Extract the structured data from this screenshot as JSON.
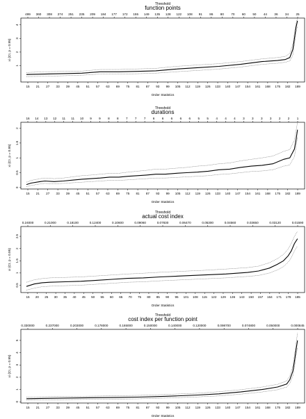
{
  "chart_data": [
    {
      "type": "line",
      "title": "function points",
      "top_axis_title": "Threshold",
      "xlabel": "Order Statistics",
      "ylabel": "xi (CI, p = 0.95)",
      "top_ticks": [
        "499",
        "360",
        "308",
        "274",
        "251",
        "235",
        "209",
        "184",
        "177",
        "172",
        "155",
        "149",
        "135",
        "128",
        "122",
        "108",
        "91",
        "86",
        "80",
        "70",
        "60",
        "50",
        "44",
        "36",
        "34",
        "25"
      ],
      "x_ticks": [
        "15",
        "21",
        "27",
        "33",
        "39",
        "45",
        "51",
        "57",
        "63",
        "69",
        "75",
        "81",
        "87",
        "93",
        "99",
        "105",
        "112",
        "119",
        "126",
        "133",
        "140",
        "147",
        "154",
        "161",
        "168",
        "175",
        "182",
        "189"
      ],
      "y_ticks": [
        1,
        2,
        3,
        4
      ],
      "ylim": [
        -0.2,
        4.5
      ],
      "xlim": [
        15,
        192
      ],
      "grid": false,
      "series": [
        {
          "role": "estimate",
          "x": [
            15,
            27,
            39,
            51,
            63,
            75,
            87,
            99,
            112,
            126,
            140,
            154,
            168,
            178,
            183,
            186,
            188,
            189,
            190,
            191
          ],
          "y": [
            0.35,
            0.38,
            0.42,
            0.45,
            0.55,
            0.55,
            0.58,
            0.62,
            0.75,
            0.85,
            0.95,
            1.1,
            1.3,
            1.38,
            1.45,
            1.6,
            2.2,
            3.0,
            3.8,
            4.3
          ]
        },
        {
          "role": "upper",
          "x": [
            15,
            27,
            39,
            51,
            63,
            75,
            87,
            99,
            112,
            126,
            140,
            154,
            168,
            178,
            183,
            186,
            188,
            189,
            190,
            191
          ],
          "y": [
            0.5,
            0.55,
            0.58,
            0.6,
            0.72,
            0.72,
            0.76,
            0.8,
            0.95,
            1.05,
            1.15,
            1.3,
            1.5,
            1.6,
            1.68,
            1.9,
            2.6,
            3.4,
            4.1,
            4.5
          ]
        },
        {
          "role": "lower",
          "x": [
            15,
            27,
            39,
            51,
            63,
            75,
            87,
            99,
            112,
            126,
            140,
            154,
            168,
            178,
            183,
            186,
            188,
            189,
            190,
            191
          ],
          "y": [
            0.2,
            0.22,
            0.26,
            0.3,
            0.38,
            0.38,
            0.41,
            0.45,
            0.55,
            0.65,
            0.75,
            0.9,
            1.1,
            1.18,
            1.25,
            1.35,
            1.8,
            2.6,
            3.4,
            3.9
          ]
        }
      ]
    },
    {
      "type": "line",
      "title": "durations",
      "top_axis_title": "Threshold",
      "xlabel": "Order Statistics",
      "ylabel": "xi (CI, p = 0.95)",
      "top_ticks": [
        "16",
        "14",
        "13",
        "12",
        "11",
        "11",
        "10",
        "9",
        "9",
        "8",
        "8",
        "7",
        "7",
        "7",
        "6",
        "6",
        "6",
        "6",
        "6",
        "5",
        "5",
        "4",
        "4",
        "4",
        "3",
        "3",
        "3",
        "3",
        "2",
        "2",
        "1"
      ],
      "x_ticks": [
        "15",
        "21",
        "27",
        "33",
        "39",
        "45",
        "51",
        "57",
        "63",
        "69",
        "75",
        "81",
        "87",
        "93",
        "99",
        "105",
        "112",
        "119",
        "126",
        "133",
        "140",
        "147",
        "154",
        "161",
        "168",
        "175",
        "182",
        "189"
      ],
      "y_ticks": [
        0.0,
        0.5,
        1.0,
        1.5,
        2.0
      ],
      "ylim": [
        -0.05,
        2.2
      ],
      "xlim": [
        15,
        192
      ],
      "grid": false,
      "series": [
        {
          "role": "estimate",
          "x": [
            15,
            18,
            24,
            27,
            33,
            39,
            45,
            51,
            57,
            63,
            69,
            75,
            81,
            87,
            93,
            99,
            105,
            112,
            119,
            126,
            133,
            140,
            147,
            154,
            161,
            168,
            175,
            182,
            186,
            189,
            190,
            191
          ],
          "y": [
            0.1,
            0.15,
            0.2,
            0.22,
            0.2,
            0.22,
            0.25,
            0.28,
            0.3,
            0.32,
            0.35,
            0.35,
            0.38,
            0.4,
            0.42,
            0.45,
            0.45,
            0.48,
            0.5,
            0.52,
            0.55,
            0.6,
            0.62,
            0.68,
            0.72,
            0.75,
            0.8,
            0.95,
            1.0,
            1.3,
            1.6,
            1.95
          ]
        },
        {
          "role": "upper",
          "x": [
            15,
            18,
            24,
            27,
            33,
            39,
            45,
            51,
            57,
            63,
            69,
            75,
            81,
            87,
            93,
            99,
            105,
            112,
            119,
            126,
            133,
            140,
            147,
            154,
            161,
            168,
            175,
            182,
            186,
            189,
            190,
            191
          ],
          "y": [
            0.18,
            0.24,
            0.3,
            0.32,
            0.3,
            0.32,
            0.36,
            0.4,
            0.42,
            0.45,
            0.48,
            0.48,
            0.52,
            0.55,
            0.58,
            0.62,
            0.62,
            0.65,
            0.68,
            0.72,
            0.75,
            0.8,
            0.83,
            0.9,
            0.95,
            1.0,
            1.06,
            1.22,
            1.28,
            1.6,
            1.9,
            2.2
          ]
        },
        {
          "role": "lower",
          "x": [
            15,
            18,
            24,
            27,
            33,
            39,
            45,
            51,
            57,
            63,
            69,
            75,
            81,
            87,
            93,
            99,
            105,
            112,
            119,
            126,
            133,
            140,
            147,
            154,
            161,
            168,
            175,
            182,
            186,
            189,
            190,
            191
          ],
          "y": [
            0.03,
            0.07,
            0.12,
            0.14,
            0.12,
            0.14,
            0.16,
            0.18,
            0.2,
            0.22,
            0.24,
            0.24,
            0.26,
            0.28,
            0.3,
            0.32,
            0.32,
            0.34,
            0.36,
            0.38,
            0.4,
            0.44,
            0.46,
            0.5,
            0.54,
            0.56,
            0.6,
            0.72,
            0.76,
            1.05,
            1.35,
            1.7
          ]
        }
      ]
    },
    {
      "type": "line",
      "title": "actual cost index",
      "top_axis_title": "Threshold",
      "xlabel": "Order Statistics",
      "ylabel": "xi (CI, p = 0.95)",
      "top_ticks": [
        "0.24000",
        "0.21000",
        "0.18100",
        "0.12400",
        "0.10600",
        "0.09060",
        "0.07830",
        "0.06470",
        "0.05300",
        "0.04560",
        "0.03650",
        "0.03120",
        "0.01590"
      ],
      "x_ticks": [
        "15",
        "20",
        "25",
        "30",
        "35",
        "40",
        "45",
        "50",
        "55",
        "60",
        "65",
        "70",
        "75",
        "80",
        "85",
        "90",
        "95",
        "101",
        "108",
        "115",
        "122",
        "129",
        "136",
        "143",
        "150",
        "157",
        "164",
        "171",
        "178",
        "185"
      ],
      "y_ticks": [
        0.5,
        1.0,
        1.5,
        2.0,
        2.5
      ],
      "ylim": [
        0.2,
        2.9
      ],
      "xlim": [
        15,
        190
      ],
      "grid": false,
      "series": [
        {
          "role": "estimate",
          "x": [
            15,
            20,
            25,
            30,
            40,
            50,
            60,
            70,
            80,
            90,
            101,
            115,
            129,
            143,
            157,
            164,
            171,
            176,
            180,
            183,
            185,
            187,
            189
          ],
          "y": [
            0.45,
            0.55,
            0.6,
            0.62,
            0.64,
            0.66,
            0.7,
            0.74,
            0.78,
            0.8,
            0.84,
            0.88,
            0.92,
            0.96,
            1.02,
            1.08,
            1.2,
            1.35,
            1.5,
            1.7,
            1.9,
            2.2,
            2.4
          ]
        },
        {
          "role": "upper",
          "x": [
            15,
            20,
            25,
            30,
            40,
            50,
            60,
            70,
            80,
            90,
            101,
            115,
            129,
            143,
            157,
            164,
            171,
            176,
            180,
            183,
            185,
            187,
            189
          ],
          "y": [
            0.62,
            0.72,
            0.77,
            0.8,
            0.82,
            0.84,
            0.88,
            0.92,
            0.96,
            0.99,
            1.03,
            1.07,
            1.11,
            1.16,
            1.22,
            1.28,
            1.42,
            1.58,
            1.76,
            1.98,
            2.2,
            2.5,
            2.7
          ]
        },
        {
          "role": "lower",
          "x": [
            15,
            20,
            25,
            30,
            40,
            50,
            60,
            70,
            80,
            90,
            101,
            115,
            129,
            143,
            157,
            164,
            171,
            176,
            180,
            183,
            185,
            187,
            189
          ],
          "y": [
            0.3,
            0.38,
            0.44,
            0.46,
            0.48,
            0.5,
            0.54,
            0.58,
            0.62,
            0.64,
            0.68,
            0.72,
            0.76,
            0.8,
            0.86,
            0.9,
            1.0,
            1.12,
            1.26,
            1.44,
            1.62,
            1.9,
            2.1
          ]
        }
      ]
    },
    {
      "type": "line",
      "title": "cost index per function point",
      "top_axis_title": "Threshold",
      "xlabel": "Order Statistics",
      "ylabel": "xi (CI, p = 0.95)",
      "top_ticks": [
        "0.330000",
        "0.237000",
        "0.203000",
        "0.178000",
        "0.165000",
        "0.150000",
        "0.140000",
        "0.120000",
        "0.098700",
        "0.074800",
        "0.050000",
        "0.000845"
      ],
      "x_ticks": [
        "15",
        "21",
        "27",
        "33",
        "39",
        "45",
        "51",
        "57",
        "63",
        "69",
        "75",
        "81",
        "87",
        "93",
        "99",
        "105",
        "112",
        "119",
        "126",
        "133",
        "140",
        "147",
        "154",
        "161",
        "168",
        "175",
        "182",
        "189"
      ],
      "y_ticks": [
        0,
        1,
        2,
        3,
        4,
        5
      ],
      "ylim": [
        -0.1,
        5.9
      ],
      "xlim": [
        15,
        192
      ],
      "grid": false,
      "series": [
        {
          "role": "estimate",
          "x": [
            15,
            27,
            39,
            51,
            63,
            75,
            87,
            99,
            112,
            126,
            140,
            154,
            168,
            178,
            184,
            186,
            188,
            189,
            190,
            191
          ],
          "y": [
            0.25,
            0.28,
            0.3,
            0.32,
            0.34,
            0.36,
            0.38,
            0.42,
            0.48,
            0.55,
            0.65,
            0.8,
            1.0,
            1.2,
            1.45,
            1.8,
            2.5,
            3.3,
            4.2,
            5.0
          ]
        },
        {
          "role": "upper",
          "x": [
            15,
            27,
            39,
            51,
            63,
            75,
            87,
            99,
            112,
            126,
            140,
            154,
            168,
            178,
            184,
            186,
            188,
            189,
            190,
            191
          ],
          "y": [
            0.38,
            0.41,
            0.43,
            0.45,
            0.47,
            0.5,
            0.52,
            0.56,
            0.63,
            0.7,
            0.82,
            0.98,
            1.2,
            1.42,
            1.7,
            2.1,
            2.9,
            3.8,
            4.7,
            5.6
          ]
        },
        {
          "role": "lower",
          "x": [
            15,
            27,
            39,
            51,
            63,
            75,
            87,
            99,
            112,
            126,
            140,
            154,
            168,
            178,
            184,
            186,
            188,
            189,
            190,
            191
          ],
          "y": [
            0.13,
            0.15,
            0.17,
            0.19,
            0.21,
            0.22,
            0.24,
            0.28,
            0.33,
            0.4,
            0.48,
            0.62,
            0.8,
            0.98,
            1.2,
            1.5,
            2.1,
            2.8,
            3.7,
            4.4
          ]
        }
      ]
    }
  ]
}
